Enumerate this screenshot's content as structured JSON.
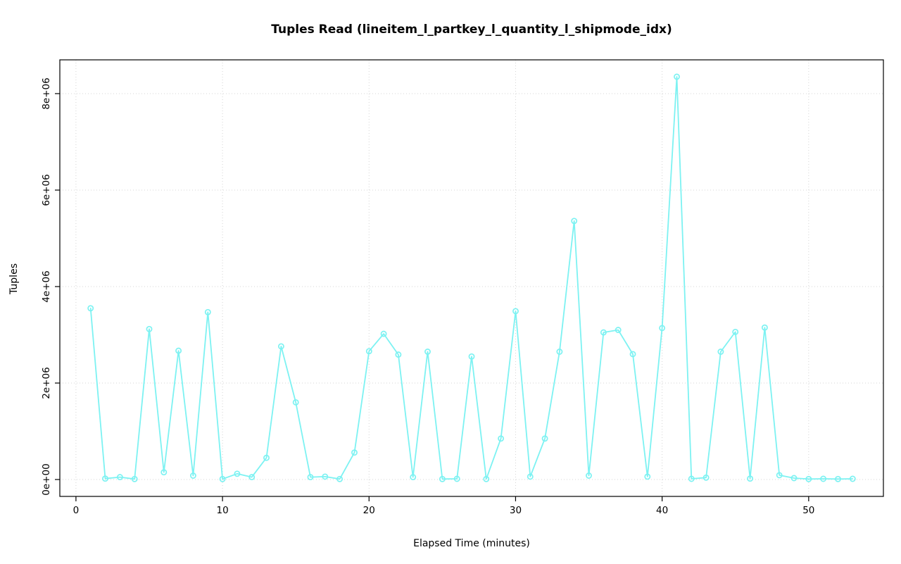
{
  "chart_data": {
    "type": "line",
    "title": "Tuples Read (lineitem_l_partkey_l_quantity_l_shipmode_idx)",
    "xlabel": "Elapsed Time (minutes)",
    "ylabel": "Tuples",
    "series_color": "#7DF2F2",
    "grid_color": "#d4d4d4",
    "axis_color": "#000000",
    "marker": "open-circle",
    "grid": true,
    "legend": "none",
    "xlim": [
      -1.1,
      55.1
    ],
    "ylim": [
      -350000,
      8700000
    ],
    "xticks": [
      0,
      10,
      20,
      30,
      40,
      50
    ],
    "xtick_labels": [
      "0",
      "10",
      "20",
      "30",
      "40",
      "50"
    ],
    "yticks": [
      0,
      2000000,
      4000000,
      6000000,
      8000000
    ],
    "ytick_labels": [
      "0e+00",
      "2e+06",
      "4e+06",
      "6e+06",
      "8e+06"
    ],
    "x": [
      1,
      2,
      3,
      4,
      5,
      6,
      7,
      8,
      9,
      10,
      11,
      12,
      13,
      14,
      15,
      16,
      17,
      18,
      19,
      20,
      21,
      22,
      23,
      24,
      25,
      26,
      27,
      28,
      29,
      30,
      31,
      32,
      33,
      34,
      35,
      36,
      37,
      38,
      39,
      40,
      41,
      42,
      43,
      44,
      45,
      46,
      47,
      48,
      49,
      50,
      51,
      52,
      53
    ],
    "values": [
      3550000,
      20000,
      50000,
      10000,
      3120000,
      150000,
      2670000,
      80000,
      3470000,
      10000,
      120000,
      50000,
      450000,
      2760000,
      1600000,
      50000,
      60000,
      10000,
      560000,
      2660000,
      3020000,
      2590000,
      50000,
      2650000,
      10000,
      15000,
      2550000,
      10000,
      850000,
      3490000,
      60000,
      850000,
      2650000,
      5360000,
      80000,
      3050000,
      3100000,
      2600000,
      60000,
      3140000,
      8350000,
      15000,
      40000,
      2650000,
      3060000,
      20000,
      3150000,
      90000,
      30000,
      10000,
      15000,
      10000,
      15000
    ]
  }
}
